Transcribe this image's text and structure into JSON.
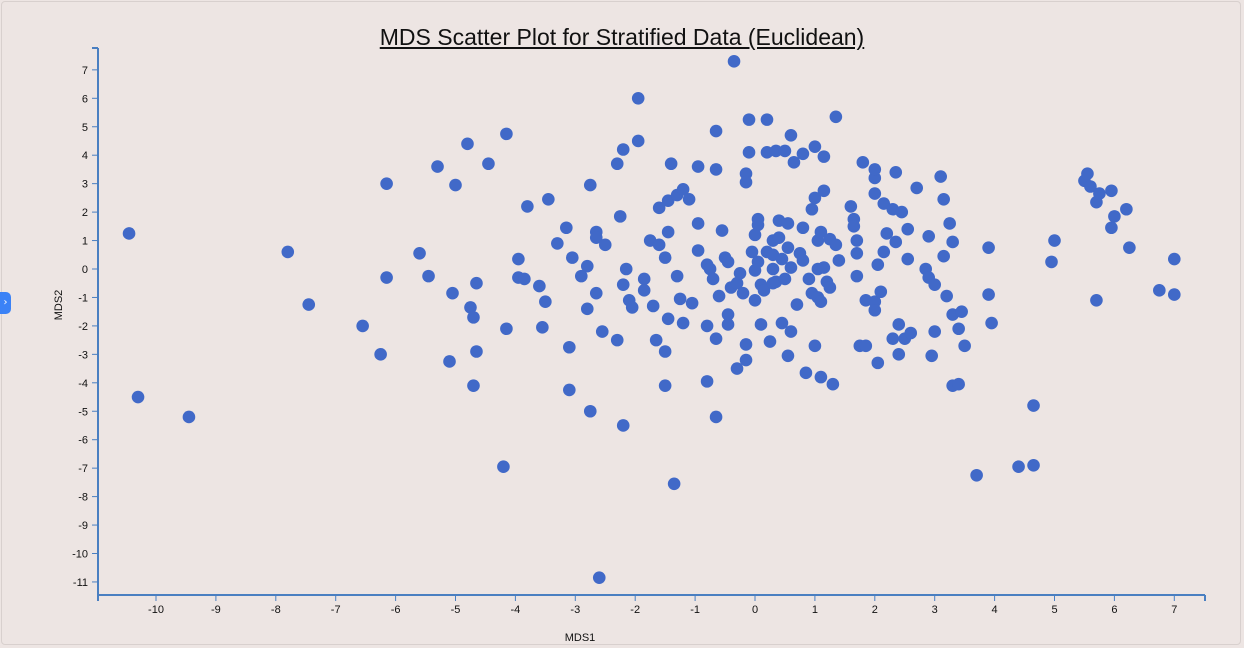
{
  "chart_data": {
    "type": "scatter",
    "title": "MDS Scatter Plot for Stratified Data (Euclidean)",
    "xlabel": "MDS1",
    "ylabel": "MDS2",
    "xlim": [
      -10.9,
      7.5
    ],
    "ylim": [
      -11.4,
      7.8
    ],
    "xticks": [
      -10,
      -9,
      -8,
      -7,
      -6,
      -5,
      -4,
      -3,
      -2,
      -1,
      0,
      1,
      2,
      3,
      4,
      5,
      6,
      7
    ],
    "yticks": [
      -11,
      -10,
      -9,
      -8,
      -7,
      -6,
      -5,
      -4,
      -3,
      -2,
      -1,
      0,
      1,
      2,
      3,
      4,
      5,
      6,
      7
    ],
    "grid": false,
    "point_color": "#4169c8",
    "points": [
      [
        -10.45,
        1.25
      ],
      [
        -10.3,
        -4.5
      ],
      [
        -9.45,
        -5.2
      ],
      [
        -7.8,
        0.6
      ],
      [
        -7.45,
        -1.25
      ],
      [
        -6.55,
        -2.0
      ],
      [
        -6.25,
        -3.0
      ],
      [
        -6.15,
        3.0
      ],
      [
        -6.15,
        -0.3
      ],
      [
        -5.6,
        0.55
      ],
      [
        -5.45,
        -0.25
      ],
      [
        -5.3,
        3.6
      ],
      [
        -5.1,
        -3.25
      ],
      [
        -5.05,
        -0.85
      ],
      [
        -5.0,
        2.95
      ],
      [
        -4.8,
        4.4
      ],
      [
        -4.75,
        -1.35
      ],
      [
        -4.7,
        -1.7
      ],
      [
        -4.7,
        -4.1
      ],
      [
        -4.65,
        -2.9
      ],
      [
        -4.65,
        -0.5
      ],
      [
        -4.45,
        3.7
      ],
      [
        -4.15,
        4.75
      ],
      [
        -4.15,
        -2.1
      ],
      [
        -4.2,
        -6.95
      ],
      [
        -3.95,
        0.35
      ],
      [
        -3.95,
        -0.3
      ],
      [
        -3.85,
        -0.35
      ],
      [
        -3.8,
        2.2
      ],
      [
        -3.6,
        -0.6
      ],
      [
        -3.55,
        -2.05
      ],
      [
        -3.5,
        -1.15
      ],
      [
        -3.45,
        2.45
      ],
      [
        -3.3,
        0.9
      ],
      [
        -3.15,
        1.45
      ],
      [
        -3.1,
        -2.75
      ],
      [
        -3.1,
        -4.25
      ],
      [
        -3.05,
        0.4
      ],
      [
        -2.9,
        -0.25
      ],
      [
        -2.8,
        0.1
      ],
      [
        -2.8,
        -1.4
      ],
      [
        -2.75,
        -5.0
      ],
      [
        -2.75,
        2.95
      ],
      [
        -2.65,
        1.3
      ],
      [
        -2.65,
        1.1
      ],
      [
        -2.65,
        -0.85
      ],
      [
        -2.6,
        -10.85
      ],
      [
        -2.55,
        -2.2
      ],
      [
        -2.5,
        0.85
      ],
      [
        -2.3,
        3.7
      ],
      [
        -2.3,
        -2.5
      ],
      [
        -2.2,
        4.2
      ],
      [
        -2.25,
        1.85
      ],
      [
        -2.2,
        -0.55
      ],
      [
        -2.2,
        -5.5
      ],
      [
        -2.15,
        0.0
      ],
      [
        -2.1,
        -1.1
      ],
      [
        -2.05,
        -1.35
      ],
      [
        -1.95,
        4.5
      ],
      [
        -1.95,
        6.0
      ],
      [
        -1.85,
        -0.35
      ],
      [
        -1.85,
        -0.75
      ],
      [
        -1.75,
        1.0
      ],
      [
        -1.7,
        -1.3
      ],
      [
        -1.65,
        -2.5
      ],
      [
        -1.6,
        2.15
      ],
      [
        -1.6,
        0.85
      ],
      [
        -1.5,
        0.4
      ],
      [
        -1.5,
        -4.1
      ],
      [
        -1.5,
        -2.9
      ],
      [
        -1.45,
        2.4
      ],
      [
        -1.45,
        1.3
      ],
      [
        -1.45,
        -1.75
      ],
      [
        -1.4,
        3.7
      ],
      [
        -1.3,
        2.6
      ],
      [
        -1.3,
        -0.25
      ],
      [
        -1.25,
        -1.05
      ],
      [
        -1.35,
        -7.55
      ],
      [
        -1.2,
        2.8
      ],
      [
        -1.2,
        -1.9
      ],
      [
        -1.1,
        2.45
      ],
      [
        -1.05,
        -1.2
      ],
      [
        -0.95,
        1.6
      ],
      [
        -0.95,
        3.6
      ],
      [
        -0.95,
        0.65
      ],
      [
        -0.8,
        0.15
      ],
      [
        -0.8,
        -2.0
      ],
      [
        -0.8,
        -3.95
      ],
      [
        -0.75,
        0.0
      ],
      [
        -0.7,
        -0.35
      ],
      [
        -0.65,
        4.85
      ],
      [
        -0.65,
        3.5
      ],
      [
        -0.65,
        -5.2
      ],
      [
        -0.65,
        -2.45
      ],
      [
        -0.6,
        -0.95
      ],
      [
        -0.55,
        1.35
      ],
      [
        -0.5,
        0.4
      ],
      [
        -0.45,
        0.25
      ],
      [
        -0.45,
        -1.6
      ],
      [
        -0.45,
        -1.95
      ],
      [
        -0.4,
        -0.65
      ],
      [
        -0.35,
        7.3
      ],
      [
        -0.3,
        -0.5
      ],
      [
        -0.3,
        -3.5
      ],
      [
        -0.25,
        -0.15
      ],
      [
        -0.2,
        -0.85
      ],
      [
        -0.15,
        3.35
      ],
      [
        -0.15,
        3.05
      ],
      [
        -0.15,
        -2.65
      ],
      [
        -0.15,
        -3.2
      ],
      [
        -0.1,
        5.25
      ],
      [
        -0.1,
        4.1
      ],
      [
        -0.05,
        0.6
      ],
      [
        0.0,
        -0.05
      ],
      [
        0.0,
        1.2
      ],
      [
        0.0,
        -1.1
      ],
      [
        0.05,
        1.55
      ],
      [
        0.05,
        1.75
      ],
      [
        0.05,
        0.25
      ],
      [
        0.1,
        -0.55
      ],
      [
        0.1,
        -1.95
      ],
      [
        0.15,
        -0.75
      ],
      [
        0.2,
        4.1
      ],
      [
        0.2,
        5.25
      ],
      [
        0.2,
        0.6
      ],
      [
        0.25,
        -2.55
      ],
      [
        0.3,
        0.0
      ],
      [
        0.3,
        0.5
      ],
      [
        0.3,
        1.0
      ],
      [
        0.3,
        -0.5
      ],
      [
        0.35,
        4.15
      ],
      [
        0.35,
        -0.45
      ],
      [
        0.4,
        1.7
      ],
      [
        0.4,
        1.1
      ],
      [
        0.45,
        0.35
      ],
      [
        0.45,
        -1.9
      ],
      [
        0.5,
        4.15
      ],
      [
        0.5,
        -0.35
      ],
      [
        0.55,
        0.75
      ],
      [
        0.55,
        1.6
      ],
      [
        0.55,
        -3.05
      ],
      [
        0.6,
        4.7
      ],
      [
        0.6,
        0.05
      ],
      [
        0.6,
        -2.2
      ],
      [
        0.65,
        3.75
      ],
      [
        0.7,
        -1.25
      ],
      [
        0.75,
        0.55
      ],
      [
        0.8,
        4.05
      ],
      [
        0.8,
        0.3
      ],
      [
        0.8,
        1.45
      ],
      [
        0.85,
        -3.65
      ],
      [
        0.9,
        -0.35
      ],
      [
        0.95,
        2.1
      ],
      [
        0.95,
        -0.85
      ],
      [
        1.0,
        4.3
      ],
      [
        1.0,
        2.5
      ],
      [
        1.0,
        -2.7
      ],
      [
        1.05,
        0.0
      ],
      [
        1.05,
        1.0
      ],
      [
        1.05,
        -1.0
      ],
      [
        1.1,
        1.3
      ],
      [
        1.1,
        -1.15
      ],
      [
        1.1,
        -3.8
      ],
      [
        1.15,
        2.75
      ],
      [
        1.15,
        0.05
      ],
      [
        1.15,
        3.95
      ],
      [
        1.2,
        -0.45
      ],
      [
        1.25,
        1.05
      ],
      [
        1.25,
        -0.65
      ],
      [
        1.3,
        -4.05
      ],
      [
        1.35,
        5.35
      ],
      [
        1.35,
        0.85
      ],
      [
        1.4,
        0.3
      ],
      [
        1.6,
        2.2
      ],
      [
        1.65,
        1.75
      ],
      [
        1.65,
        1.5
      ],
      [
        1.7,
        0.55
      ],
      [
        1.7,
        1.0
      ],
      [
        1.7,
        -0.25
      ],
      [
        1.75,
        -2.7
      ],
      [
        1.8,
        3.75
      ],
      [
        1.85,
        -1.1
      ],
      [
        1.85,
        -2.7
      ],
      [
        2.0,
        2.65
      ],
      [
        2.0,
        3.2
      ],
      [
        2.0,
        3.5
      ],
      [
        2.0,
        -1.15
      ],
      [
        2.0,
        -1.45
      ],
      [
        2.05,
        0.15
      ],
      [
        2.05,
        -3.3
      ],
      [
        2.1,
        -0.8
      ],
      [
        2.15,
        2.3
      ],
      [
        2.15,
        0.6
      ],
      [
        2.2,
        1.25
      ],
      [
        2.3,
        2.1
      ],
      [
        2.3,
        -2.45
      ],
      [
        2.35,
        0.95
      ],
      [
        2.35,
        3.4
      ],
      [
        2.4,
        -1.95
      ],
      [
        2.4,
        -3.0
      ],
      [
        2.45,
        2.0
      ],
      [
        2.5,
        -2.45
      ],
      [
        2.55,
        0.35
      ],
      [
        2.55,
        1.4
      ],
      [
        2.6,
        -2.25
      ],
      [
        2.7,
        2.85
      ],
      [
        2.85,
        0.0
      ],
      [
        2.9,
        1.15
      ],
      [
        2.9,
        -0.3
      ],
      [
        2.95,
        -3.05
      ],
      [
        3.0,
        -2.2
      ],
      [
        3.0,
        -0.55
      ],
      [
        3.1,
        3.25
      ],
      [
        3.15,
        0.45
      ],
      [
        3.15,
        2.45
      ],
      [
        3.2,
        -0.95
      ],
      [
        3.25,
        1.6
      ],
      [
        3.3,
        0.95
      ],
      [
        3.3,
        -1.6
      ],
      [
        3.3,
        -4.1
      ],
      [
        3.4,
        -2.1
      ],
      [
        3.4,
        -4.05
      ],
      [
        3.45,
        -1.5
      ],
      [
        3.5,
        -2.7
      ],
      [
        3.7,
        -7.25
      ],
      [
        3.9,
        0.75
      ],
      [
        3.9,
        -0.9
      ],
      [
        3.95,
        -1.9
      ],
      [
        4.4,
        -6.95
      ],
      [
        4.65,
        -6.9
      ],
      [
        4.65,
        -4.8
      ],
      [
        4.95,
        0.25
      ],
      [
        5.0,
        1.0
      ],
      [
        5.5,
        3.1
      ],
      [
        5.55,
        3.35
      ],
      [
        5.6,
        2.9
      ],
      [
        5.7,
        2.35
      ],
      [
        5.7,
        -1.1
      ],
      [
        5.75,
        2.65
      ],
      [
        5.95,
        1.45
      ],
      [
        5.95,
        2.75
      ],
      [
        6.0,
        1.85
      ],
      [
        6.2,
        2.1
      ],
      [
        6.25,
        0.75
      ],
      [
        6.75,
        -0.75
      ],
      [
        7.0,
        0.35
      ],
      [
        7.0,
        -0.9
      ]
    ]
  }
}
